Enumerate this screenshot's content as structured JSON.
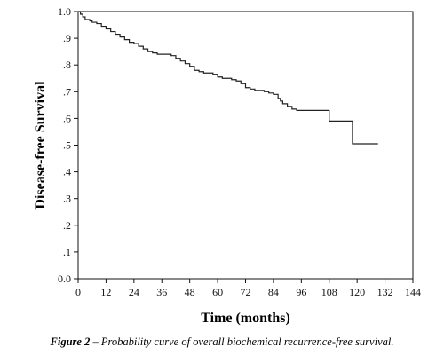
{
  "chart_data": {
    "type": "line",
    "step": true,
    "xlabel": "Time (months)",
    "ylabel": "Disease-free Survival",
    "xlim": [
      0,
      144
    ],
    "ylim": [
      0.0,
      1.0
    ],
    "x_ticks": [
      0,
      12,
      24,
      36,
      48,
      60,
      72,
      84,
      96,
      108,
      120,
      132,
      144
    ],
    "y_ticks": [
      0.0,
      0.1,
      0.2,
      0.3,
      0.4,
      0.5,
      0.6,
      0.7,
      0.8,
      0.9,
      1.0
    ],
    "y_tick_labels": [
      "0.0",
      ".1",
      ".2",
      ".3",
      ".4",
      ".5",
      ".6",
      ".7",
      ".8",
      ".9",
      "1.0"
    ],
    "grid": false,
    "series": [
      {
        "x": [
          0,
          1,
          2,
          3,
          5,
          6,
          8,
          10,
          12,
          14,
          16,
          18,
          20,
          22,
          24,
          26,
          28,
          30,
          32,
          34,
          36,
          38,
          40,
          42,
          44,
          46,
          48,
          50,
          52,
          54,
          56,
          58,
          60,
          62,
          64,
          66,
          68,
          70,
          72,
          74,
          76,
          78,
          80,
          82,
          84,
          86,
          87,
          88,
          90,
          92,
          94,
          96,
          100,
          104,
          108,
          112,
          116,
          118,
          120,
          124,
          129
        ],
        "y": [
          1.0,
          0.99,
          0.98,
          0.97,
          0.965,
          0.96,
          0.955,
          0.945,
          0.935,
          0.925,
          0.915,
          0.905,
          0.895,
          0.885,
          0.88,
          0.87,
          0.86,
          0.85,
          0.845,
          0.84,
          0.84,
          0.84,
          0.835,
          0.825,
          0.815,
          0.805,
          0.795,
          0.78,
          0.775,
          0.77,
          0.77,
          0.765,
          0.755,
          0.75,
          0.75,
          0.745,
          0.74,
          0.73,
          0.715,
          0.71,
          0.705,
          0.705,
          0.7,
          0.695,
          0.69,
          0.675,
          0.665,
          0.655,
          0.645,
          0.635,
          0.63,
          0.63,
          0.63,
          0.63,
          0.59,
          0.59,
          0.59,
          0.505,
          0.505,
          0.505,
          0.505
        ]
      }
    ]
  },
  "caption": {
    "label": "Figure 2",
    "text": " – Probability curve of overall biochemical recurrence-free survival."
  },
  "colors": {
    "line": "#222222",
    "axis": "#111111"
  }
}
